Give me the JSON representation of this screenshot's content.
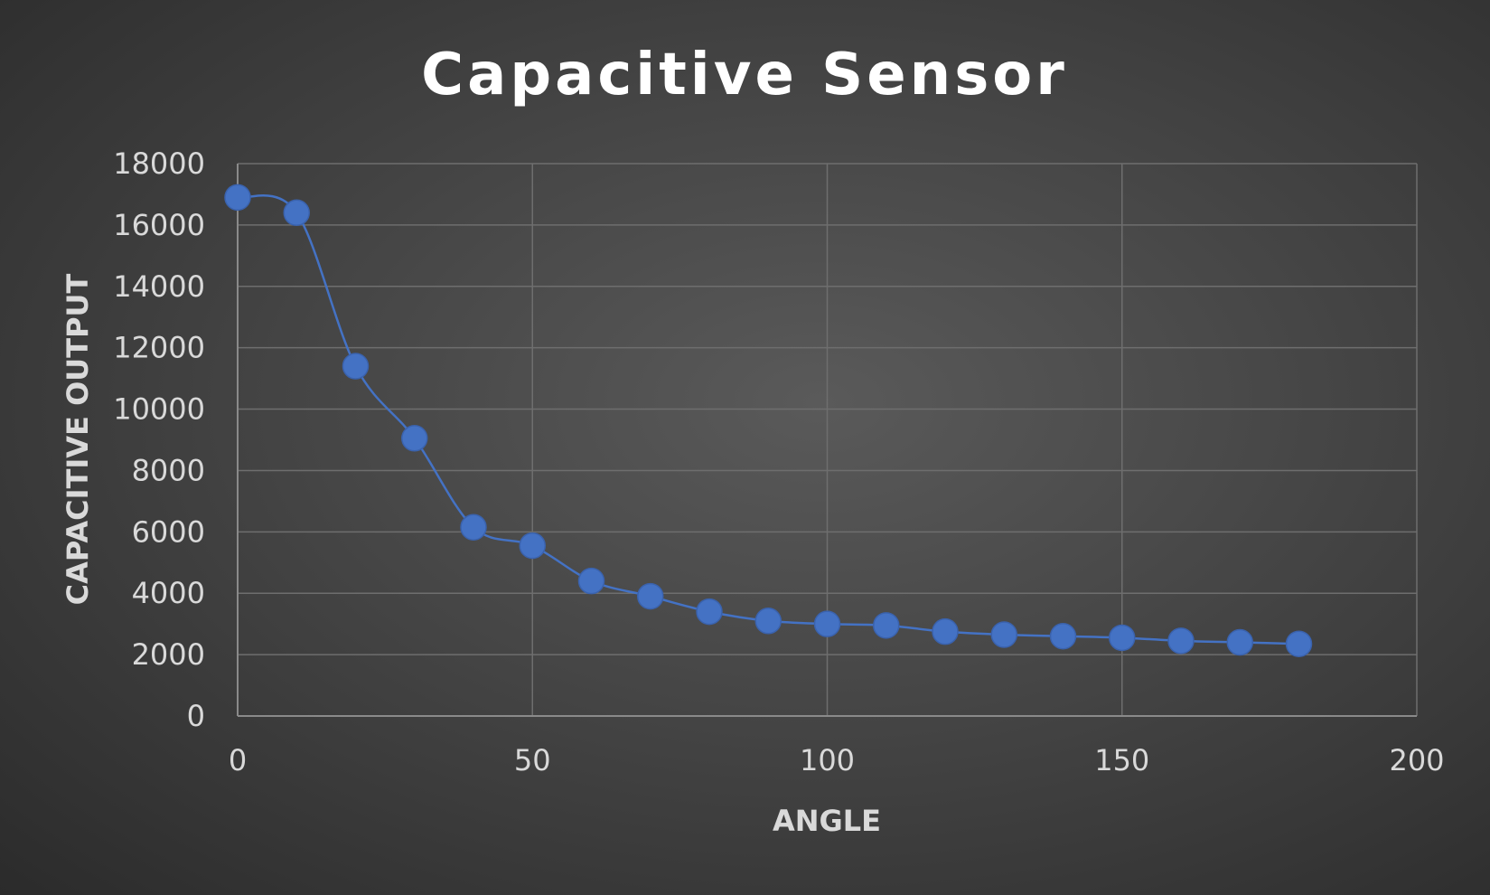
{
  "chart_data": {
    "type": "scatter",
    "title": "Capacitive Sensor",
    "xlabel": "ANGLE",
    "ylabel": "CAPACITIVE OUTPUT",
    "xlim": [
      0,
      200
    ],
    "ylim": [
      0,
      18000
    ],
    "x_ticks": [
      0,
      50,
      100,
      150,
      200
    ],
    "y_ticks": [
      0,
      2000,
      4000,
      6000,
      8000,
      10000,
      12000,
      14000,
      16000,
      18000
    ],
    "grid": true,
    "smoothed_line": true,
    "series_color": "#4472c4",
    "series": [
      {
        "x": [
          0,
          10,
          20,
          30,
          40,
          50,
          60,
          70,
          80,
          90,
          100,
          110,
          120,
          130,
          140,
          150,
          160,
          170,
          180
        ],
        "y": [
          16900,
          16400,
          11400,
          9050,
          6150,
          5550,
          4400,
          3900,
          3400,
          3100,
          3000,
          2950,
          2750,
          2650,
          2600,
          2550,
          2450,
          2400,
          2350
        ]
      }
    ]
  }
}
